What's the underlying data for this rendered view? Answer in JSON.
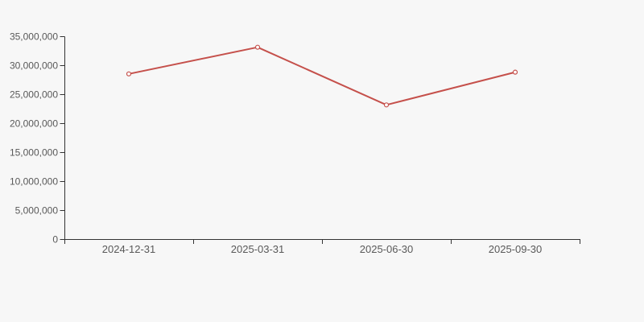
{
  "theme": {
    "background": "#f7f7f7",
    "line_color": "#c5504b",
    "marker_fill": "#ffffff",
    "axis_color": "#333333",
    "label_color": "#595959"
  },
  "chart_data": {
    "type": "line",
    "categories": [
      "2024-12-31",
      "2025-03-31",
      "2025-06-30",
      "2025-09-30"
    ],
    "values": [
      28500000,
      33100000,
      23150000,
      28800000
    ],
    "title": "",
    "xlabel": "",
    "ylabel": "",
    "ylim": [
      0,
      35000000
    ],
    "ytick_step": 5000000,
    "ytick_labels": [
      "0",
      "5,000,000",
      "10,000,000",
      "15,000,000",
      "20,000,000",
      "25,000,000",
      "30,000,000",
      "35,000,000"
    ],
    "grid": false,
    "legend": false,
    "marker": "hollow-circle"
  }
}
